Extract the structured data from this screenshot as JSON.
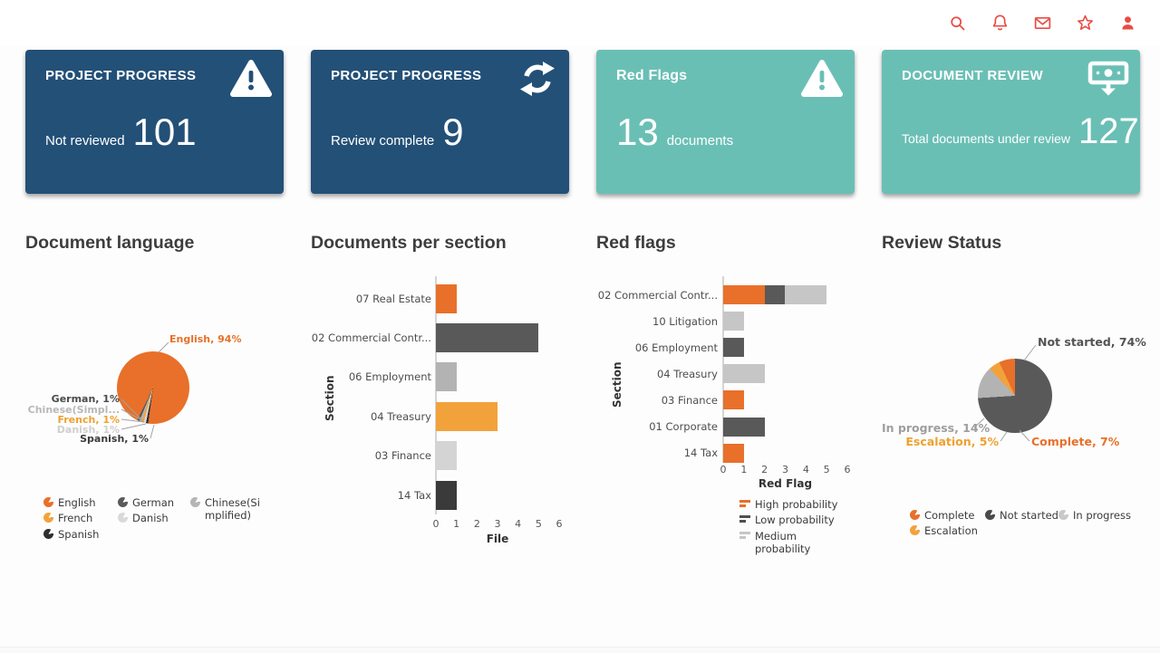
{
  "topbar": {
    "icon_color": "#e94b44",
    "icons": [
      {
        "name": "search-icon"
      },
      {
        "name": "notifications-bell-icon"
      },
      {
        "name": "messages-envelope-icon"
      },
      {
        "name": "favorites-star-icon"
      },
      {
        "name": "account-person-icon"
      }
    ]
  },
  "cards": [
    {
      "title": "PROJECT PROGRESS",
      "label": "Not reviewed",
      "value": "101",
      "icon": "warning-triangle-icon",
      "bg": "#235077"
    },
    {
      "title": "PROJECT PROGRESS",
      "label": "Review complete",
      "value": "9",
      "icon": "sync-refresh-icon",
      "bg": "#235077"
    },
    {
      "title": "Red Flags",
      "value": "13",
      "label": "documents",
      "icon": "warning-triangle-icon",
      "bg": "#6abfb5"
    },
    {
      "title": "DOCUMENT REVIEW",
      "label": "Total documents under review",
      "value": "127",
      "icon": "banknote-download-icon",
      "bg": "#6abfb5"
    }
  ],
  "chart_data": [
    {
      "type": "pie",
      "title": "Document language",
      "start_angle_deg": 188,
      "slices": [
        {
          "label": "Spanish",
          "pct": 1,
          "color": "#2f2f2f"
        },
        {
          "label": "Danish",
          "pct": 1,
          "color": "#d9d9d9"
        },
        {
          "label": "French",
          "pct": 1,
          "color": "#f2a23b"
        },
        {
          "label": "Chinese(Simplified)",
          "pct": 1,
          "color": "#b5b5b5"
        },
        {
          "label": "German",
          "pct": 1,
          "color": "#595959"
        },
        {
          "label": "English",
          "pct": 94,
          "color": "#e8702a"
        }
      ],
      "callouts": [
        {
          "text": "English, 94%",
          "color": "#e8702a"
        },
        {
          "text": "German, 1%",
          "color": "#4a4a4a"
        },
        {
          "text": "Chinese(Simpl...",
          "color": "#b8b8b8"
        },
        {
          "text": "French, 1%",
          "color": "#f0a030"
        },
        {
          "text": "Danish, 1%",
          "color": "#cfcfcf"
        },
        {
          "text": "Spanish, 1%",
          "color": "#3a3a3a"
        }
      ],
      "legend": {
        "marker": "pie",
        "columns": [
          [
            {
              "label": "English",
              "color": "#e8702a"
            },
            {
              "label": "French",
              "color": "#f2a23b"
            },
            {
              "label": "Spanish",
              "color": "#2f2f2f"
            }
          ],
          [
            {
              "label": "German",
              "color": "#595959"
            },
            {
              "label": "Danish",
              "color": "#d9d9d9"
            }
          ],
          [
            {
              "label": "Chinese(Simplified)",
              "color": "#b5b5b5"
            }
          ]
        ]
      }
    },
    {
      "type": "bar",
      "title": "Documents per section",
      "categories": [
        "07 Real Estate",
        "02 Commercial Contr...",
        "06 Employment",
        "04 Treasury",
        "03 Finance",
        "14 Tax"
      ],
      "values": [
        1,
        5,
        1,
        3,
        1,
        1
      ],
      "colors": [
        "#e8702a",
        "#595959",
        "#b3b3b3",
        "#f2a23b",
        "#d4d4d4",
        "#3a3a3a"
      ],
      "xlabel": "File",
      "ylabel": "Section",
      "xlim": [
        0,
        6
      ],
      "xticks": [
        0,
        1,
        2,
        3,
        4,
        5,
        6
      ]
    },
    {
      "type": "stacked-bar",
      "title": "Red flags",
      "categories": [
        "02 Commercial Contr...",
        "10 Litigation",
        "06 Employment",
        "04 Treasury",
        "03 Finance",
        "01 Corporate",
        "14 Tax"
      ],
      "series": [
        {
          "name": "High probability",
          "color": "#e8702a",
          "values": [
            2,
            0,
            0,
            0,
            1,
            0,
            1
          ]
        },
        {
          "name": "Low probability",
          "color": "#595959",
          "values": [
            1,
            0,
            1,
            0,
            0,
            2,
            0
          ]
        },
        {
          "name": "Medium probability",
          "color": "#c6c6c6",
          "values": [
            2,
            1,
            0,
            2,
            0,
            0,
            0
          ]
        }
      ],
      "xlabel": "Red Flag",
      "ylabel": "Section",
      "xlim": [
        0,
        6
      ],
      "xticks": [
        0,
        1,
        2,
        3,
        4,
        5,
        6
      ],
      "legend": {
        "marker": "bars",
        "items": [
          {
            "label": "High probability",
            "color": "#e8702a"
          },
          {
            "label": "Low probability",
            "color": "#4f4f4f"
          },
          {
            "label": "Medium probability",
            "color": "#c6c6c6"
          }
        ]
      }
    },
    {
      "type": "pie",
      "title": "Review Status",
      "start_angle_deg": 0,
      "slices": [
        {
          "label": "Not started",
          "pct": 74,
          "color": "#595959"
        },
        {
          "label": "In progress",
          "pct": 14,
          "color": "#b3b3b3"
        },
        {
          "label": "Escalation",
          "pct": 5,
          "color": "#f2a23b"
        },
        {
          "label": "Complete",
          "pct": 7,
          "color": "#e8702a"
        }
      ],
      "callouts": [
        {
          "text": "Not started, 74%",
          "color": "#545454"
        },
        {
          "text": "In progress, 14%",
          "color": "#9e9e9e"
        },
        {
          "text": "Escalation, 5%",
          "color": "#f0a030"
        },
        {
          "text": "Complete, 7%",
          "color": "#e8702a"
        }
      ],
      "legend": {
        "marker": "pie",
        "columns": [
          [
            {
              "label": "Complete",
              "color": "#e8702a"
            },
            {
              "label": "Escalation",
              "color": "#f2a23b"
            }
          ],
          [
            {
              "label": "Not started",
              "color": "#4a4a4a"
            }
          ],
          [
            {
              "label": "In progress",
              "color": "#c9c9c9"
            }
          ]
        ]
      }
    }
  ]
}
